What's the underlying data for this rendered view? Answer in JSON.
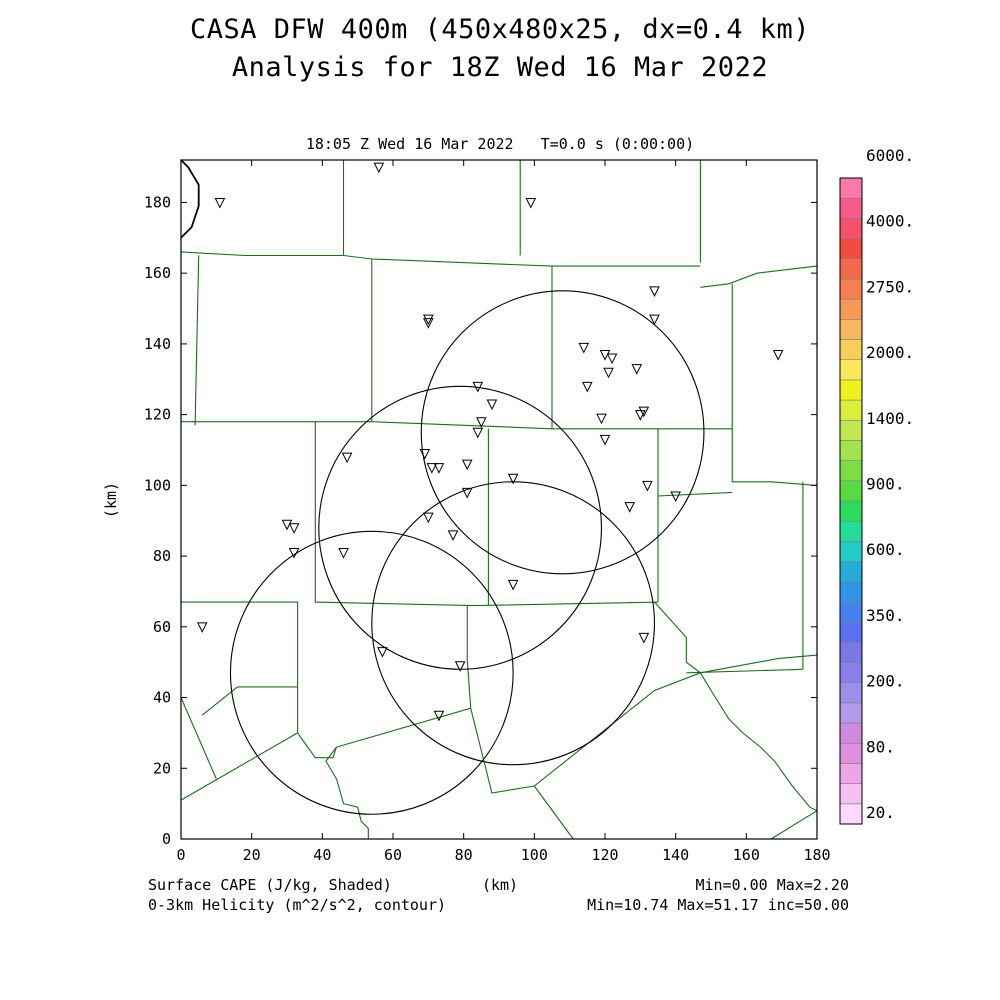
{
  "title_line1": "CASA DFW 400m (450x480x25, dx=0.4 km)",
  "title_line2": "Analysis for 18Z Wed 16 Mar 2022",
  "valid_time": "18:05 Z Wed 16 Mar 2022   T=0.0 s (0:00:00)",
  "axes": {
    "x_label": "(km)",
    "y_label": "(km)",
    "x_range": [
      0,
      180
    ],
    "y_range": [
      0,
      192
    ],
    "x_ticks": [
      "0",
      "20",
      "40",
      "60",
      "80",
      "100",
      "120",
      "140",
      "160",
      "180"
    ],
    "y_ticks": [
      "0",
      "20",
      "40",
      "60",
      "80",
      "100",
      "120",
      "140",
      "160",
      "180"
    ]
  },
  "footer": {
    "left_line1": "Surface CAPE (J/kg, Shaded)",
    "left_line2": "0-3km Helicity (m^2/s^2, contour)",
    "right_line1": "Min=0.00 Max=2.20",
    "right_line2": "Min=10.74 Max=51.17 inc=50.00"
  },
  "colorbar": {
    "colors": [
      "#ffd8ff",
      "#f4c0f0",
      "#eaa6e6",
      "#e08ee0",
      "#d08ae0",
      "#b29ae8",
      "#9a90ec",
      "#8a80ec",
      "#7a78e8",
      "#5a70f0",
      "#4482f0",
      "#3094e6",
      "#24acd6",
      "#22ccc8",
      "#22dc9a",
      "#2cdc5c",
      "#56dc40",
      "#7cde46",
      "#a2e44c",
      "#c0e850",
      "#daf038",
      "#eef020",
      "#f8e85a",
      "#f8ce5a",
      "#f6b860",
      "#f69a56",
      "#f48050",
      "#f46a48",
      "#f24c40",
      "#f6506c",
      "#f85a8c",
      "#fa78ac"
    ],
    "labels": [
      "20.",
      "80.",
      "200.",
      "350.",
      "600.",
      "900.",
      "1400.",
      "2000.",
      "2750.",
      "4000.",
      "6000."
    ],
    "label_values": [
      20,
      80,
      200,
      350,
      600,
      900,
      1400,
      2000,
      2750,
      4000,
      6000
    ]
  },
  "map_data": {
    "county_line_color": "#1a6e1a",
    "helicity_contour_color": "#000000",
    "radar_range_circles_km": [
      {
        "cx": 108,
        "cy": 115,
        "r": 40
      },
      {
        "cx": 79,
        "cy": 88,
        "r": 40
      },
      {
        "cx": 94,
        "cy": 61,
        "r": 40
      },
      {
        "cx": 54,
        "cy": 47,
        "r": 40
      }
    ],
    "stations_km": [
      [
        11,
        180
      ],
      [
        56,
        190
      ],
      [
        99,
        180
      ],
      [
        70,
        147
      ],
      [
        70,
        146
      ],
      [
        134,
        155
      ],
      [
        134,
        147
      ],
      [
        114,
        139
      ],
      [
        120,
        137
      ],
      [
        122,
        136
      ],
      [
        121,
        132
      ],
      [
        129,
        133
      ],
      [
        115,
        128
      ],
      [
        84,
        128
      ],
      [
        88,
        123
      ],
      [
        119,
        119
      ],
      [
        131,
        121
      ],
      [
        130,
        120
      ],
      [
        85,
        118
      ],
      [
        84,
        115
      ],
      [
        120,
        113
      ],
      [
        69,
        109
      ],
      [
        47,
        108
      ],
      [
        71,
        105
      ],
      [
        73,
        105
      ],
      [
        81,
        106
      ],
      [
        94,
        102
      ],
      [
        132,
        100
      ],
      [
        81,
        98
      ],
      [
        140,
        97
      ],
      [
        127,
        94
      ],
      [
        70,
        91
      ],
      [
        30,
        89
      ],
      [
        32,
        88
      ],
      [
        77,
        86
      ],
      [
        32,
        81
      ],
      [
        46,
        81
      ],
      [
        94,
        72
      ],
      [
        6,
        60
      ],
      [
        131,
        57
      ],
      [
        57,
        53
      ],
      [
        79,
        49
      ],
      [
        73,
        35
      ],
      [
        169,
        137
      ]
    ]
  }
}
